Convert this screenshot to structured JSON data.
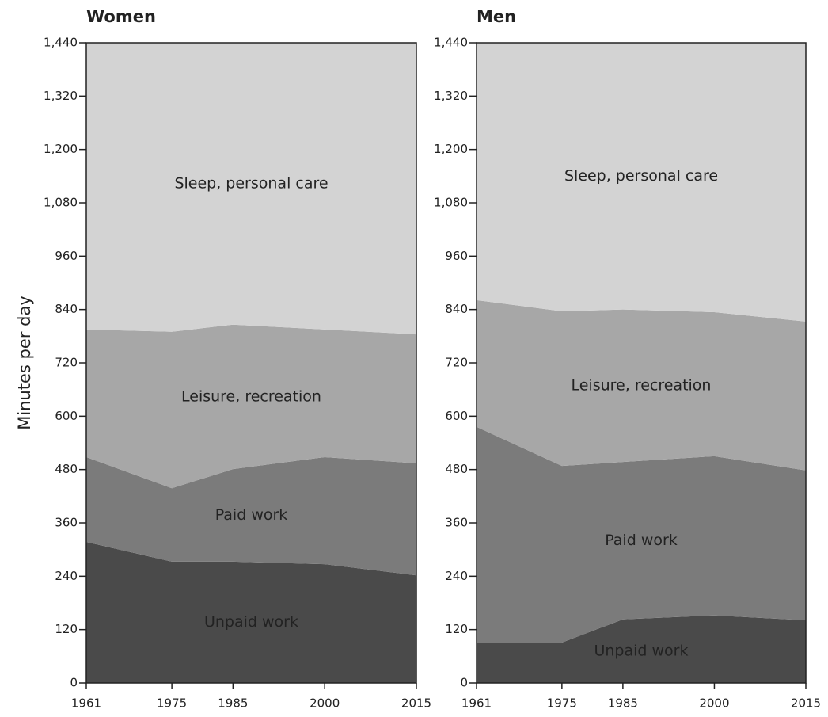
{
  "chart_data": [
    {
      "type": "stacked-area",
      "title": "Women",
      "ylabel": "Minutes per day",
      "x": [
        1961,
        1975,
        1985,
        2000,
        2015
      ],
      "xlim": [
        1961,
        2015
      ],
      "xticks": [
        1961,
        1975,
        1985,
        2000,
        2015
      ],
      "ylim": [
        0,
        1440
      ],
      "yticks": [
        0,
        120,
        240,
        360,
        480,
        600,
        720,
        840,
        960,
        {
          "value": 1080,
          "label": "1,080"
        },
        {
          "value": 1200,
          "label": "1,200"
        },
        {
          "value": 1320,
          "label": "1,320"
        },
        {
          "value": 1440,
          "label": "1,440"
        }
      ],
      "series": [
        {
          "name": "Unpaid work",
          "color": "#4a4a4a",
          "values": [
            317,
            273,
            273,
            267,
            242
          ]
        },
        {
          "name": "Paid work",
          "color": "#7b7b7b",
          "values": [
            191,
            165,
            208,
            241,
            252
          ]
        },
        {
          "name": "Leisure, recreation",
          "color": "#a7a7a7",
          "values": [
            287,
            352,
            325,
            287,
            290
          ]
        },
        {
          "name": "Sleep, personal care",
          "color": "#d3d3d3",
          "values": [
            645,
            650,
            634,
            645,
            656
          ]
        }
      ]
    },
    {
      "type": "stacked-area",
      "title": "Men",
      "x": [
        1961,
        1975,
        1985,
        2000,
        2015
      ],
      "xlim": [
        1961,
        2015
      ],
      "xticks": [
        1961,
        1975,
        1985,
        2000,
        2015
      ],
      "ylim": [
        0,
        1440
      ],
      "yticks": [
        0,
        120,
        240,
        360,
        480,
        600,
        720,
        840,
        960,
        {
          "value": 1080,
          "label": "1,080"
        },
        {
          "value": 1200,
          "label": "1,200"
        },
        {
          "value": 1320,
          "label": "1,320"
        },
        {
          "value": 1440,
          "label": "1,440"
        }
      ],
      "series": [
        {
          "name": "Unpaid work",
          "color": "#4a4a4a",
          "values": [
            91,
            91,
            143,
            152,
            141
          ]
        },
        {
          "name": "Paid work",
          "color": "#7b7b7b",
          "values": [
            485,
            397,
            354,
            358,
            337
          ]
        },
        {
          "name": "Leisure, recreation",
          "color": "#a7a7a7",
          "values": [
            285,
            348,
            343,
            324,
            335
          ]
        },
        {
          "name": "Sleep, personal care",
          "color": "#d3d3d3",
          "values": [
            579,
            604,
            600,
            606,
            627
          ]
        }
      ]
    }
  ]
}
